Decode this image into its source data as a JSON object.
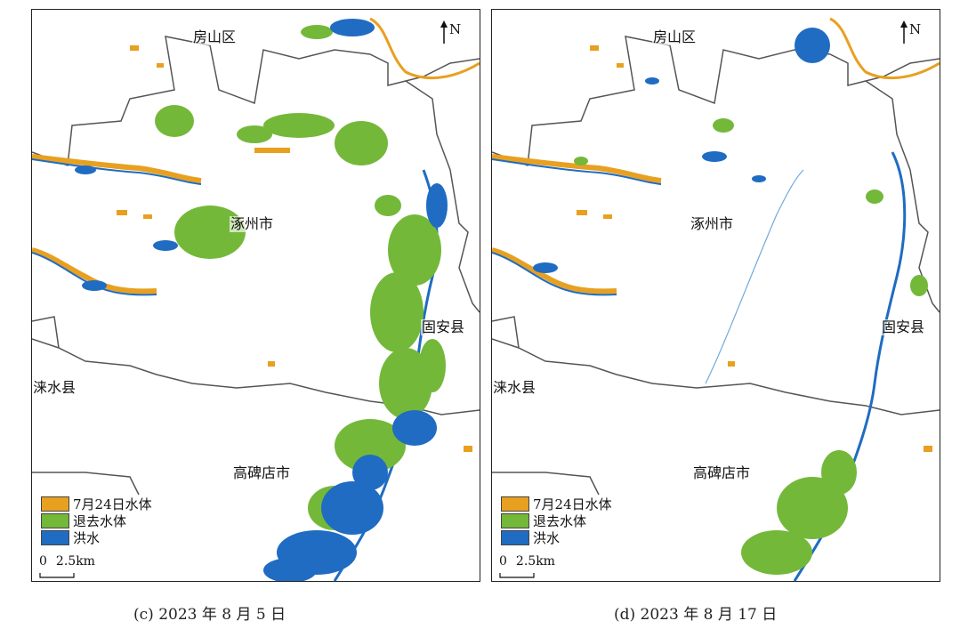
{
  "panels": [
    {
      "id": "c",
      "caption": "(c) 2023 年 8 月 5 日",
      "labels": {
        "fangshan": "房山区",
        "zhuozhou": "涿州市",
        "guan": "固安县",
        "laishui": "涞水县",
        "gaobeidian": "高碑店市"
      },
      "north": "N",
      "legend": [
        {
          "label": "7月24日水体",
          "color": "#E8A020"
        },
        {
          "label": "退去水体",
          "color": "#74B83A"
        },
        {
          "label": "洪水",
          "color": "#1F6CC2"
        }
      ],
      "scale": {
        "start": "0",
        "end": "2.5",
        "unit": "km"
      }
    },
    {
      "id": "d",
      "caption": "(d) 2023 年 8 月 17 日",
      "labels": {
        "fangshan": "房山区",
        "zhuozhou": "涿州市",
        "guan": "固安县",
        "laishui": "涞水县",
        "gaobeidian": "高碑店市"
      },
      "north": "N",
      "legend": [
        {
          "label": "7月24日水体",
          "color": "#E8A020"
        },
        {
          "label": "退去水体",
          "color": "#74B83A"
        },
        {
          "label": "洪水",
          "color": "#1F6CC2"
        }
      ],
      "scale": {
        "start": "0",
        "end": "2.5",
        "unit": "km"
      }
    }
  ],
  "colors": {
    "boundary": "#555555",
    "orange": "#E8A020",
    "green": "#74B83A",
    "blue": "#1F6CC2"
  }
}
